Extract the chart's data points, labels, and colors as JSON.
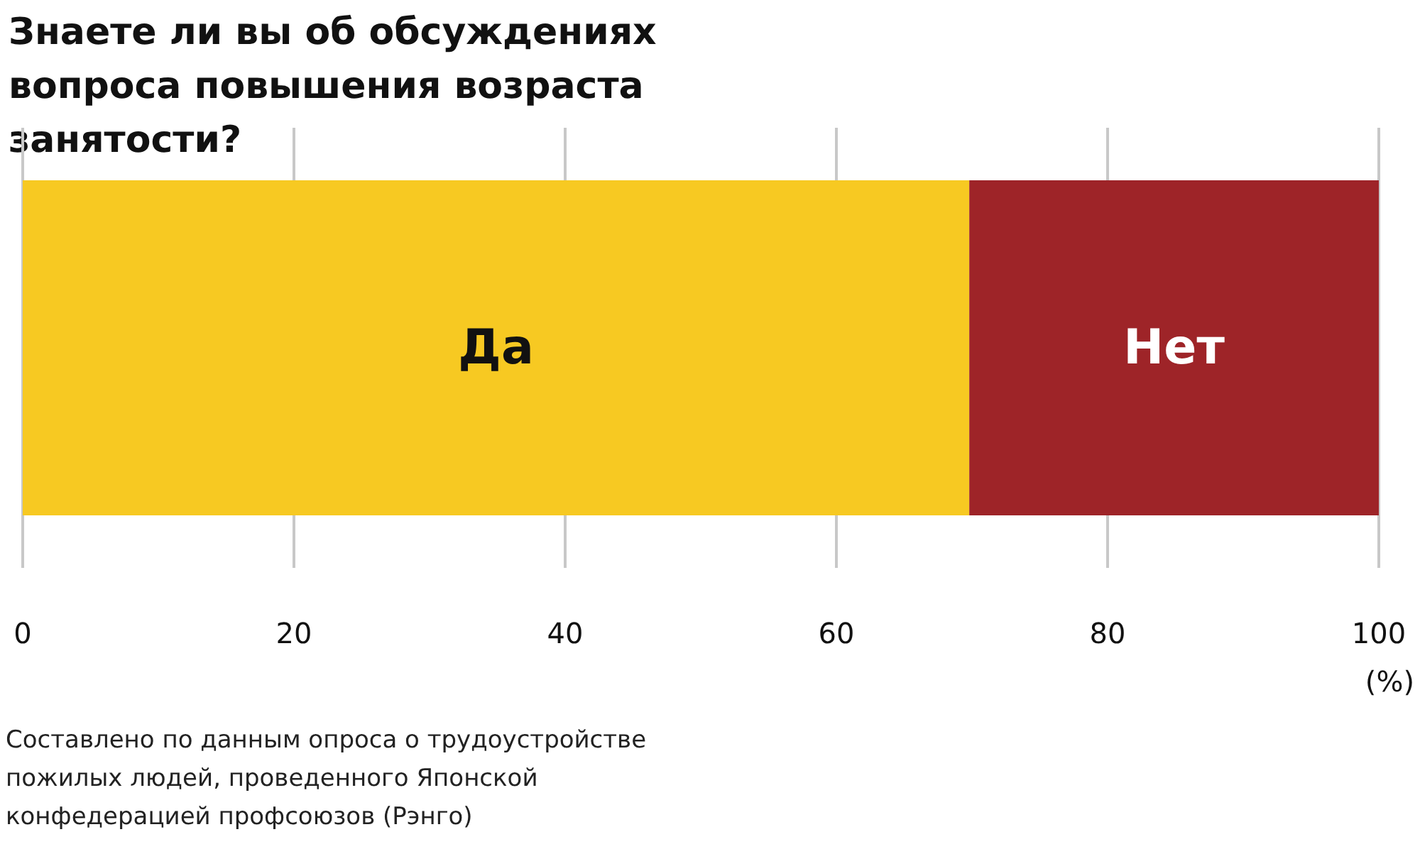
{
  "chart_data": {
    "type": "bar",
    "orientation": "horizontal",
    "stacked": true,
    "title": "Знаете ли вы об обсуждениях вопроса повышения возраста занятости?",
    "xlabel": "(%)",
    "annotations": [
      "Составлено по данным опроса о трудоустройстве пожилых людей, проведенного Японской конфедерацией профсоюзов (Рэнго)"
    ],
    "categories": [
      null
    ],
    "series": [
      {
        "name": "Да",
        "color": "#f7c922",
        "values": [
          69.8
        ]
      },
      {
        "name": "Нет",
        "color": "#9e2428",
        "values": [
          30.2
        ]
      }
    ],
    "xlim": [
      0,
      100
    ],
    "xticks": [
      0,
      20,
      40,
      60,
      80,
      100
    ],
    "grid": "x"
  }
}
